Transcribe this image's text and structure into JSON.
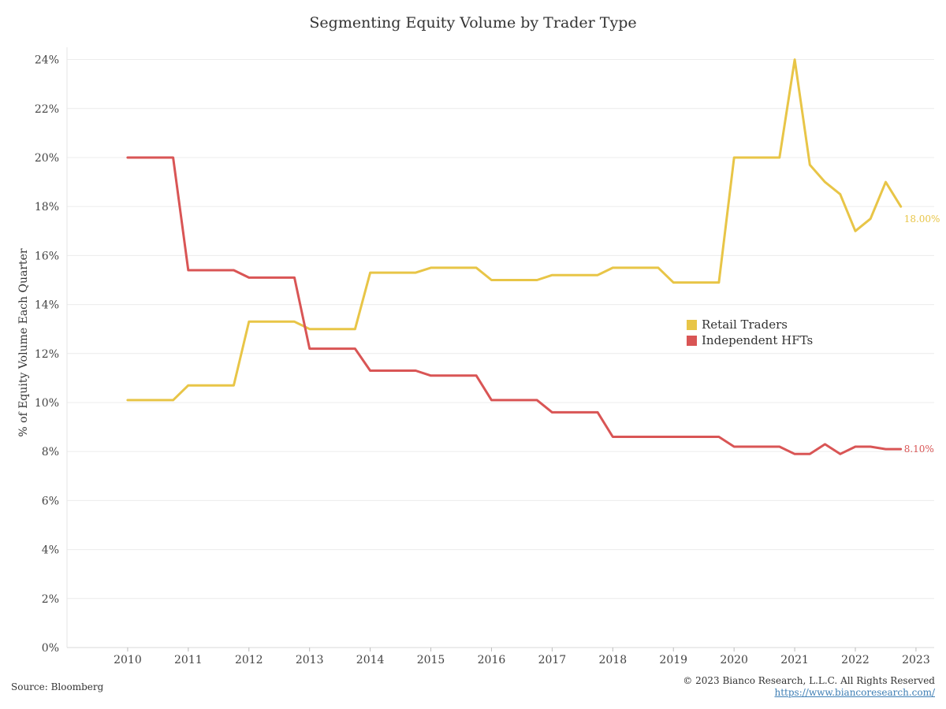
{
  "title": "Segmenting Equity Volume by Trader Type",
  "source": "Source: Bloomberg",
  "copyright": "© 2023 Bianco Research, L.L.C. All Rights Reserved",
  "link": "https://www.biancoresearch.com/",
  "chart_data": {
    "type": "line",
    "title": "Segmenting Equity Volume by Trader Type",
    "xlabel": "",
    "ylabel": "% of Equity Volume Each Quarter",
    "xlim": [
      2009.0,
      2023.3
    ],
    "ylim": [
      0,
      24.5
    ],
    "x_ticks": [
      2010,
      2011,
      2012,
      2013,
      2014,
      2015,
      2016,
      2017,
      2018,
      2019,
      2020,
      2021,
      2022,
      2023
    ],
    "y_ticks": [
      0,
      2,
      4,
      6,
      8,
      10,
      12,
      14,
      16,
      18,
      20,
      22,
      24
    ],
    "y_tick_labels": [
      "0%",
      "2%",
      "4%",
      "6%",
      "8%",
      "10%",
      "12%",
      "14%",
      "16%",
      "18%",
      "20%",
      "22%",
      "24%"
    ],
    "grid": "horizontal",
    "legend": "center-right",
    "series": [
      {
        "name": "Retail Traders",
        "color": "#e8c547",
        "end_label": "18.00%",
        "x": [
          2010,
          2010.75,
          2011,
          2011.75,
          2012,
          2012.75,
          2013,
          2013.75,
          2014,
          2014.75,
          2015,
          2015.75,
          2016,
          2016.75,
          2017,
          2017.75,
          2018,
          2018.75,
          2019,
          2019.75,
          2020,
          2020.75,
          2021,
          2021.25,
          2021.5,
          2021.75,
          2022,
          2022.25,
          2022.5,
          2022.75
        ],
        "values": [
          10.1,
          10.1,
          10.7,
          10.7,
          13.3,
          13.3,
          13.0,
          13.0,
          15.3,
          15.3,
          15.5,
          15.5,
          15.0,
          15.0,
          15.2,
          15.2,
          15.5,
          15.5,
          14.9,
          14.9,
          20.0,
          20.0,
          24.0,
          19.7,
          19.0,
          18.5,
          17.0,
          17.5,
          19.0,
          18.0
        ]
      },
      {
        "name": "Independent HFTs",
        "color": "#d95555",
        "end_label": "8.10%",
        "x": [
          2010,
          2010.75,
          2011,
          2011.75,
          2012,
          2012.75,
          2013,
          2013.75,
          2014,
          2014.75,
          2015,
          2015.75,
          2016,
          2016.75,
          2017,
          2017.75,
          2018,
          2018.75,
          2019,
          2019.75,
          2020,
          2020.75,
          2021,
          2021.25,
          2021.5,
          2021.75,
          2022,
          2022.25,
          2022.5,
          2022.75
        ],
        "values": [
          20.0,
          20.0,
          15.4,
          15.4,
          15.1,
          15.1,
          12.2,
          12.2,
          11.3,
          11.3,
          11.1,
          11.1,
          10.1,
          10.1,
          9.6,
          9.6,
          8.6,
          8.6,
          8.6,
          8.6,
          8.2,
          8.2,
          7.9,
          7.9,
          8.3,
          7.9,
          8.2,
          8.2,
          8.1,
          8.1
        ]
      }
    ]
  }
}
